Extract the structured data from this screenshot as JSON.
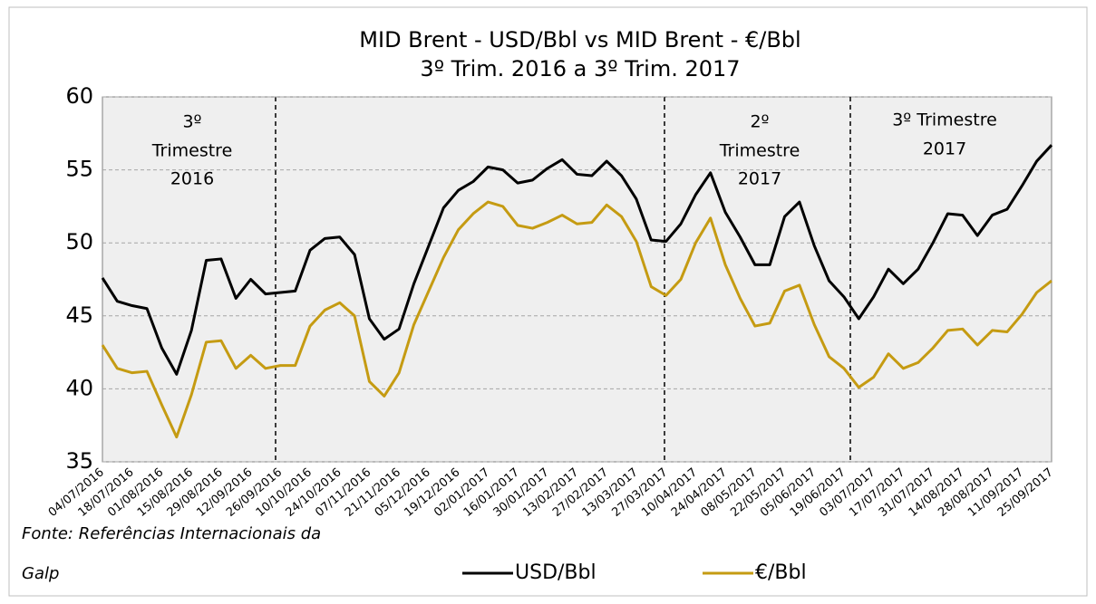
{
  "chart_data": {
    "type": "line",
    "title": "MID Brent - USD/Bbl vs MID Brent - €/Bbl",
    "subtitle": "3º Trim. 2016 a 3º Trim. 2017",
    "annotations": [
      {
        "lines": [
          "3º",
          "Trimestre",
          "2016"
        ]
      },
      {
        "lines": [
          "2º",
          "Trimestre",
          "2017"
        ]
      },
      {
        "lines": [
          "3º Trimestre",
          "2017"
        ]
      }
    ],
    "source": "Fonte: Referências Internacionais da Galp",
    "categories": [
      "04/07/2016",
      null,
      "18/07/2016",
      null,
      "01/08/2016",
      null,
      "15/08/2016",
      null,
      "29/08/2016",
      null,
      "12/09/2016",
      null,
      "26/09/2016",
      null,
      "10/10/2016",
      null,
      "24/10/2016",
      null,
      "07/11/2016",
      null,
      "21/11/2016",
      null,
      "05/12/2016",
      null,
      "19/12/2016",
      null,
      "02/01/2017",
      null,
      "16/01/2017",
      null,
      "30/01/2017",
      null,
      "13/02/2017",
      null,
      "27/02/2017",
      null,
      "13/03/2017",
      null,
      "27/03/2017",
      null,
      "10/04/2017",
      null,
      "24/04/2017",
      null,
      "08/05/2017",
      null,
      "22/05/2017",
      null,
      "05/06/2017",
      null,
      "19/06/2017",
      null,
      "03/07/2017",
      null,
      "17/07/2017",
      null,
      "31/07/2017",
      null,
      "14/08/2017",
      null,
      "28/08/2017",
      null,
      "11/09/2017",
      null,
      "25/09/2017"
    ],
    "series": [
      {
        "name": "USD/Bbl",
        "color": "#000000",
        "values": [
          47.6,
          46.0,
          45.7,
          45.5,
          42.8,
          41.0,
          44.0,
          48.8,
          48.9,
          46.2,
          47.5,
          46.5,
          46.6,
          46.7,
          49.5,
          50.3,
          50.4,
          49.2,
          44.8,
          43.4,
          44.1,
          47.2,
          49.8,
          52.4,
          53.6,
          54.2,
          55.2,
          55.0,
          54.1,
          54.3,
          55.1,
          55.7,
          54.7,
          54.6,
          55.6,
          54.6,
          53.0,
          50.2,
          50.1,
          51.3,
          53.3,
          54.8,
          52.1,
          50.4,
          48.5,
          48.5,
          51.8,
          52.8,
          49.8,
          47.4,
          46.3,
          44.8,
          46.3,
          48.2,
          47.2,
          48.2,
          50.0,
          52.0,
          51.9,
          50.5,
          51.9,
          52.3,
          53.9,
          55.6,
          56.7
        ]
      },
      {
        "name": "€/Bbl",
        "color": "#c59b12",
        "values": [
          43.0,
          41.4,
          41.1,
          41.2,
          38.9,
          36.7,
          39.6,
          43.2,
          43.3,
          41.4,
          42.3,
          41.4,
          41.6,
          41.6,
          44.3,
          45.4,
          45.9,
          45.0,
          40.5,
          39.5,
          41.1,
          44.4,
          46.7,
          49.0,
          50.9,
          52.0,
          52.8,
          52.5,
          51.2,
          51.0,
          51.4,
          51.9,
          51.3,
          51.4,
          52.6,
          51.8,
          50.1,
          47.0,
          46.4,
          47.5,
          50.0,
          51.7,
          48.5,
          46.2,
          44.3,
          44.5,
          46.7,
          47.1,
          44.4,
          42.2,
          41.4,
          40.1,
          40.8,
          42.4,
          41.4,
          41.8,
          42.8,
          44.0,
          44.1,
          43.0,
          44.0,
          43.9,
          45.1,
          46.6,
          47.4
        ]
      }
    ],
    "ylim": [
      35,
      60
    ],
    "yticks": [
      35,
      40,
      45,
      50,
      55,
      60
    ],
    "grid": true
  }
}
